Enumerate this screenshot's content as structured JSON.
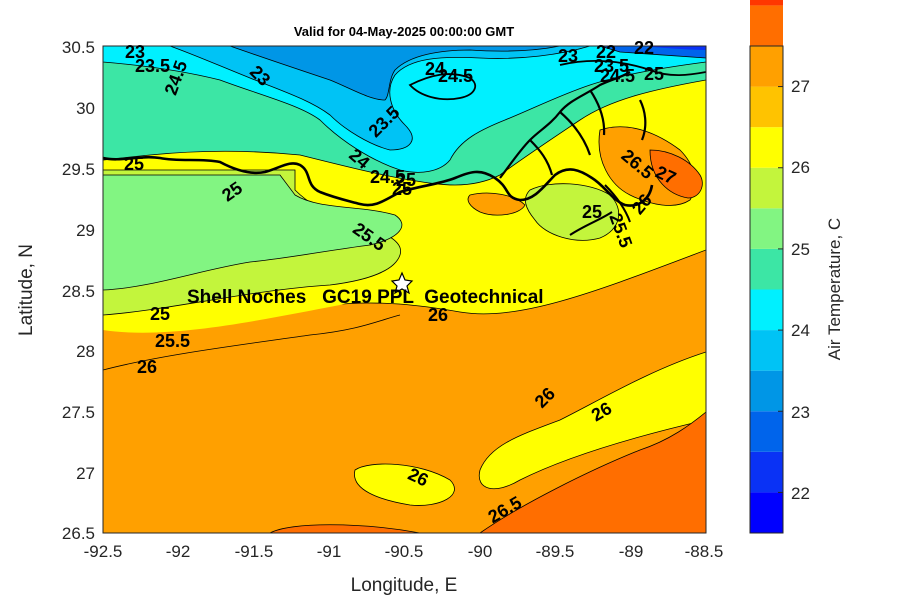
{
  "title": "Valid for 04-May-2025 00:00:00 GMT",
  "xlabel": "Longitude, E",
  "ylabel": "Latitude, N",
  "x_ticks": [
    "-92.5",
    "-92",
    "-91.5",
    "-91",
    "-90.5",
    "-90",
    "-89.5",
    "-89",
    "-88.5"
  ],
  "y_ticks": [
    "30.5",
    "30",
    "29.5",
    "29",
    "28.5",
    "28",
    "27.5",
    "27",
    "26.5"
  ],
  "annotation": "Shell Noches   GC19 PPL  Geotechnical",
  "colorbar": {
    "label": "Air Temperature, C",
    "ticks": [
      "27",
      "26",
      "25",
      "24",
      "23",
      "22"
    ],
    "range": [
      21.5,
      27.5
    ],
    "step": 0.5,
    "colors": [
      "#0000ff",
      "#0a32f5",
      "#0064eb",
      "#0096e6",
      "#00c3f5",
      "#00f0ff",
      "#3ce6a5",
      "#82f582",
      "#c3f53c",
      "#ffff00",
      "#ffc300",
      "#ffa000",
      "#ff6e00",
      "#ff3700",
      "#ff0000"
    ]
  },
  "contour_labels": [
    "23",
    "23.5",
    "24.5",
    "23",
    "23.5",
    "24",
    "24.5",
    "23",
    "22",
    "22",
    "23.5",
    "24.5",
    "25",
    "25",
    "25",
    "24",
    "24.5",
    "25",
    "25.5",
    "25",
    "25.5",
    "26",
    "26",
    "26",
    "26",
    "26",
    "26.5",
    "26.5",
    "27",
    "26",
    "25",
    "25.5",
    "25"
  ],
  "marker": {
    "name": "star",
    "lon": -90.52,
    "lat": 28.55
  },
  "chart_data": {
    "type": "heatmap",
    "title": "Valid for 04-May-2025 00:00:00 GMT",
    "xlabel": "Longitude, E",
    "ylabel": "Latitude, N",
    "xlim": [
      -92.5,
      -88.5
    ],
    "ylim": [
      26.5,
      30.5
    ],
    "colorbar_label": "Air Temperature, C",
    "clim": [
      21.5,
      27.5
    ],
    "contour_levels": [
      22,
      22.5,
      23,
      23.5,
      24,
      24.5,
      25,
      25.5,
      26,
      26.5,
      27
    ]
  }
}
